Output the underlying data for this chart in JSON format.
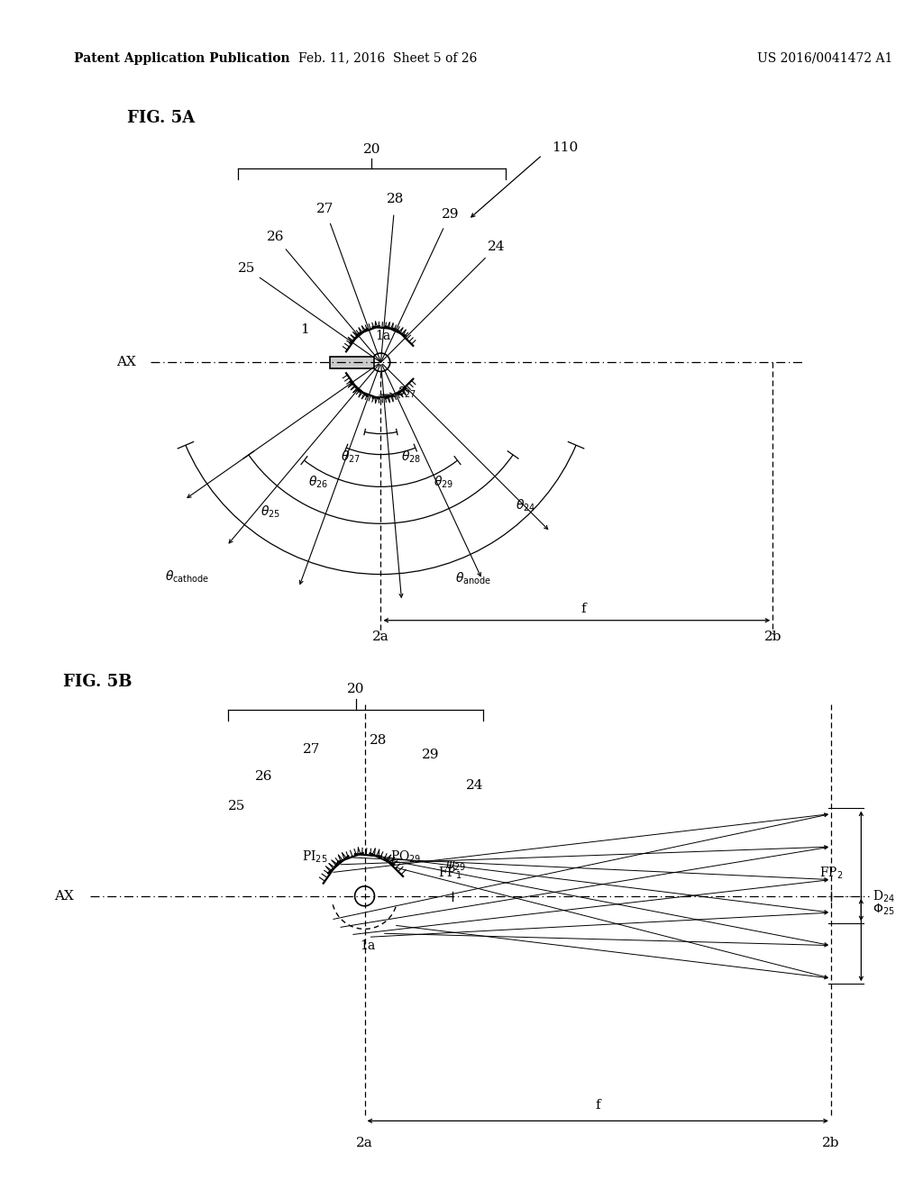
{
  "background_color": "#ffffff",
  "header_text": "Patent Application Publication",
  "header_date": "Feb. 11, 2016  Sheet 5 of 26",
  "header_patent": "US 2016/0041472 A1",
  "fig5a_label": "FIG. 5A",
  "fig5b_label": "FIG. 5B",
  "lc": "#000000",
  "fs_label": 11,
  "fs_header": 10,
  "mirror_angles_up_deg": [
    -55,
    -40,
    -20,
    5,
    25,
    45
  ],
  "mirror_labels": [
    "25",
    "26",
    "27",
    "28",
    "29",
    "24"
  ],
  "mirror_dist": 0.75
}
